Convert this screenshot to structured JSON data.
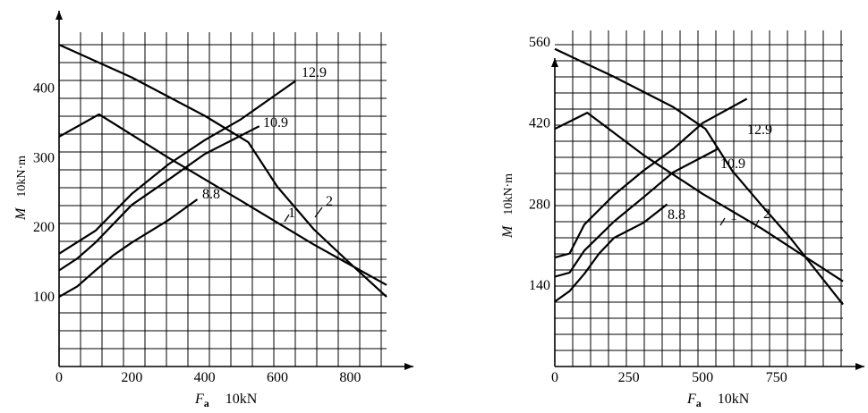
{
  "chart_data": [
    {
      "type": "line",
      "xlabel_symbol": "F",
      "xlabel_subscript": "a",
      "xlabel_unit": "10kN",
      "ylabel_symbol": "M",
      "ylabel_unit": "10kN·m",
      "xlim": [
        0,
        900
      ],
      "ylim": [
        0,
        480
      ],
      "x_ticks": [
        0,
        200,
        400,
        600,
        800
      ],
      "y_ticks": [
        100,
        200,
        300,
        400
      ],
      "grid": true,
      "series": [
        {
          "name": "12.9",
          "x": [
            0,
            100,
            200,
            300,
            400,
            500,
            650
          ],
          "y": [
            162,
            195,
            248,
            290,
            325,
            355,
            410
          ]
        },
        {
          "name": "10.9",
          "x": [
            0,
            50,
            100,
            200,
            300,
            400,
            550
          ],
          "y": [
            138,
            155,
            178,
            232,
            268,
            305,
            345
          ]
        },
        {
          "name": "8.8",
          "x": [
            0,
            50,
            100,
            150,
            200,
            300,
            380
          ],
          "y": [
            100,
            115,
            138,
            160,
            178,
            210,
            240
          ]
        },
        {
          "name": "1",
          "x": [
            0,
            110,
            300,
            500,
            700,
            900
          ],
          "y": [
            330,
            362,
            300,
            238,
            175,
            117
          ]
        },
        {
          "name": "2",
          "x": [
            0,
            200,
            400,
            520,
            600,
            700,
            800,
            900
          ],
          "y": [
            462,
            415,
            360,
            322,
            258,
            197,
            148,
            100
          ]
        }
      ]
    },
    {
      "type": "line",
      "xlabel_symbol": "F",
      "xlabel_subscript": "a",
      "xlabel_unit": "10kN",
      "ylabel_symbol": "M",
      "ylabel_unit": "10kN·m",
      "xlim": [
        0,
        975
      ],
      "ylim": [
        0,
        580
      ],
      "x_ticks": [
        0,
        250,
        500,
        750
      ],
      "y_ticks": [
        140,
        280,
        420,
        560
      ],
      "grid": true,
      "series": [
        {
          "name": "12.9",
          "x": [
            0,
            50,
            100,
            200,
            300,
            400,
            500,
            650
          ],
          "y": [
            188,
            195,
            245,
            296,
            338,
            375,
            420,
            462
          ]
        },
        {
          "name": "10.9",
          "x": [
            0,
            50,
            100,
            200,
            300,
            400,
            550
          ],
          "y": [
            155,
            162,
            200,
            250,
            292,
            335,
            375
          ]
        },
        {
          "name": "8.8",
          "x": [
            0,
            50,
            100,
            150,
            200,
            300,
            380
          ],
          "y": [
            112,
            130,
            160,
            195,
            222,
            248,
            280
          ]
        },
        {
          "name": "1",
          "x": [
            0,
            110,
            300,
            500,
            700,
            975
          ],
          "y": [
            410,
            438,
            365,
            298,
            238,
            147
          ]
        },
        {
          "name": "2",
          "x": [
            0,
            200,
            400,
            510,
            600,
            700,
            800,
            975
          ],
          "y": [
            548,
            500,
            448,
            410,
            338,
            278,
            220,
            107
          ]
        }
      ],
      "series_labels": {
        "12.9": "12.9",
        "10.9": "10.9",
        "8.8": "8.8",
        "1": "1",
        "2": "2"
      }
    }
  ]
}
